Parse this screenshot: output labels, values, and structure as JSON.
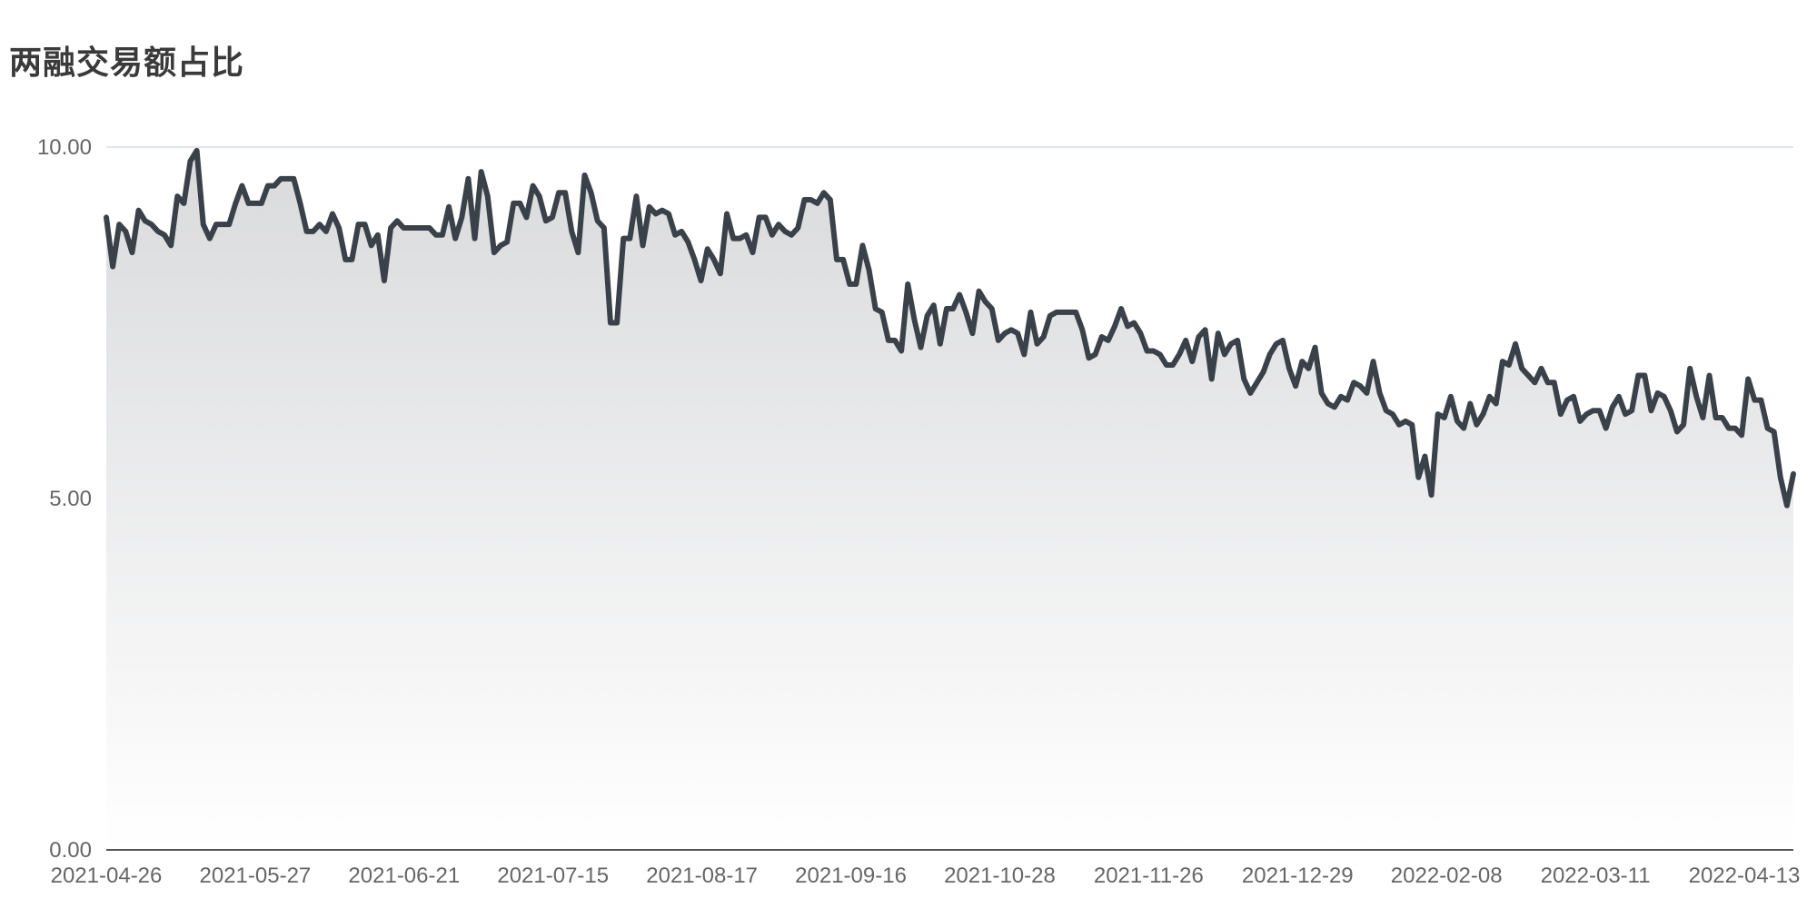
{
  "chart_data": {
    "type": "area",
    "title": "两融交易额占比",
    "xlabel": "",
    "ylabel": "",
    "ylim": [
      0,
      10
    ],
    "grid": true,
    "y_ticks": [
      {
        "value": 0,
        "label": "0.00"
      },
      {
        "value": 5,
        "label": "5.00"
      },
      {
        "value": 10,
        "label": "10.00"
      }
    ],
    "x_ticks": [
      "2021-04-26",
      "2021-05-27",
      "2021-06-21",
      "2021-07-15",
      "2021-08-17",
      "2021-09-16",
      "2021-10-28",
      "2021-11-26",
      "2021-12-29",
      "2022-02-08",
      "2022-03-11",
      "2022-04-13"
    ],
    "colors": {
      "line": "#3a4149",
      "fill_top": "#d9dadc",
      "fill_bottom": "#ffffff",
      "grid": "#d6dce8",
      "axis": "#555555"
    },
    "series": [
      {
        "values": [
          9.0,
          8.3,
          8.9,
          8.8,
          8.5,
          9.1,
          8.95,
          8.9,
          8.8,
          8.75,
          8.6,
          9.3,
          9.2,
          9.8,
          9.95,
          8.9,
          8.7,
          8.9,
          8.9,
          8.9,
          9.2,
          9.45,
          9.2,
          9.2,
          9.2,
          9.45,
          9.45,
          9.55,
          9.55,
          9.55,
          9.2,
          8.8,
          8.8,
          8.9,
          8.8,
          9.05,
          8.85,
          8.4,
          8.4,
          8.9,
          8.9,
          8.6,
          8.75,
          8.1,
          8.85,
          8.95,
          8.85,
          8.85,
          8.85,
          8.85,
          8.85,
          8.75,
          8.75,
          9.15,
          8.7,
          9.0,
          9.55,
          8.7,
          9.65,
          9.3,
          8.5,
          8.6,
          8.65,
          9.2,
          9.2,
          9.0,
          9.45,
          9.3,
          8.95,
          9.0,
          9.35,
          9.35,
          8.8,
          8.5,
          9.6,
          9.35,
          8.95,
          8.85,
          7.5,
          7.5,
          8.7,
          8.7,
          9.3,
          8.6,
          9.15,
          9.05,
          9.1,
          9.05,
          8.75,
          8.8,
          8.65,
          8.4,
          8.1,
          8.55,
          8.4,
          8.2,
          9.05,
          8.7,
          8.7,
          8.75,
          8.5,
          9.0,
          9.0,
          8.75,
          8.9,
          8.8,
          8.75,
          8.85,
          9.25,
          9.25,
          9.2,
          9.35,
          9.25,
          8.4,
          8.4,
          8.05,
          8.05,
          8.6,
          8.25,
          7.7,
          7.65,
          7.25,
          7.25,
          7.1,
          8.05,
          7.55,
          7.15,
          7.6,
          7.75,
          7.2,
          7.7,
          7.7,
          7.9,
          7.65,
          7.35,
          7.95,
          7.8,
          7.7,
          7.25,
          7.35,
          7.4,
          7.35,
          7.05,
          7.65,
          7.2,
          7.3,
          7.6,
          7.65,
          7.65,
          7.65,
          7.65,
          7.4,
          7.0,
          7.05,
          7.3,
          7.25,
          7.45,
          7.7,
          7.45,
          7.5,
          7.35,
          7.1,
          7.1,
          7.05,
          6.9,
          6.9,
          7.05,
          7.25,
          6.95,
          7.3,
          7.4,
          6.7,
          7.35,
          7.05,
          7.2,
          7.25,
          6.7,
          6.5,
          6.65,
          6.8,
          7.05,
          7.2,
          7.25,
          6.85,
          6.6,
          6.95,
          6.85,
          7.15,
          6.5,
          6.35,
          6.3,
          6.45,
          6.4,
          6.65,
          6.6,
          6.5,
          6.95,
          6.5,
          6.25,
          6.2,
          6.05,
          6.1,
          6.05,
          5.3,
          5.6,
          5.05,
          6.2,
          6.15,
          6.45,
          6.1,
          6.0,
          6.35,
          6.05,
          6.2,
          6.45,
          6.35,
          6.95,
          6.9,
          7.2,
          6.85,
          6.75,
          6.65,
          6.85,
          6.65,
          6.65,
          6.2,
          6.4,
          6.45,
          6.1,
          6.2,
          6.25,
          6.25,
          6.0,
          6.3,
          6.45,
          6.2,
          6.25,
          6.75,
          6.75,
          6.25,
          6.5,
          6.45,
          6.25,
          5.95,
          6.05,
          6.85,
          6.45,
          6.15,
          6.75,
          6.15,
          6.15,
          6.0,
          6.0,
          5.9,
          6.7,
          6.4,
          6.4,
          6.0,
          5.95,
          5.3,
          4.9,
          5.35
        ]
      }
    ]
  }
}
